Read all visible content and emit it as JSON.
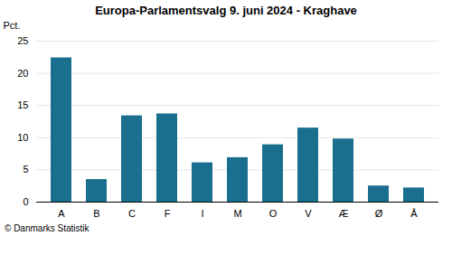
{
  "chart_data": {
    "type": "bar",
    "title": "Europa-Parlamentsvalg 9. juni 2024 - Kraghave",
    "categories": [
      "A",
      "B",
      "C",
      "F",
      "I",
      "M",
      "O",
      "V",
      "Æ",
      "Ø",
      "Å"
    ],
    "values": [
      22.4,
      3.5,
      13.4,
      13.7,
      6.1,
      6.9,
      8.9,
      11.5,
      9.8,
      2.5,
      2.2
    ],
    "color": "#1a6e8e",
    "ylim": [
      0,
      25
    ],
    "yticks": [
      0,
      5,
      10,
      15,
      20,
      25
    ],
    "grid": true,
    "ylabel": "Pct.",
    "caption": "© Danmarks Statistik"
  }
}
